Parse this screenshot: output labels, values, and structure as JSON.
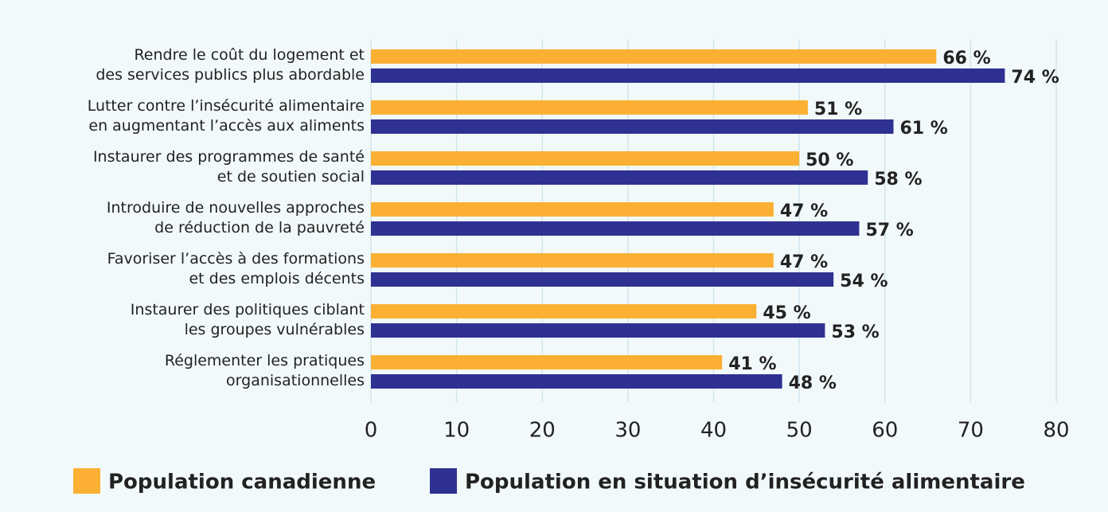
{
  "chart_data": {
    "type": "bar",
    "orientation": "horizontal",
    "categories": [
      "Rendre le coût du logement et\ndes services publics plus abordable",
      "Lutter contre l’insécurité alimentaire\nen augmentant l’accès aux aliments",
      "Instaurer des programmes de santé\net de soutien social",
      "Introduire de nouvelles approches\nde réduction de la pauvreté",
      "Favoriser l’accès à des formations\net des emplois décents",
      "Instaurer des politiques ciblant\nles groupes vulnérables",
      "Réglementer les pratiques\norganisationnelles"
    ],
    "series": [
      {
        "name": "Population canadienne",
        "color": "#fbb034",
        "values": [
          66,
          51,
          50,
          47,
          47,
          45,
          41
        ],
        "value_labels": [
          "66 %",
          "51 %",
          "50 %",
          "47 %",
          "47 %",
          "45 %",
          "41 %"
        ]
      },
      {
        "name": "Population en situation d’insécurité alimentaire",
        "color": "#2e3192",
        "values": [
          74,
          61,
          58,
          57,
          54,
          53,
          48
        ],
        "value_labels": [
          "74 %",
          "61 %",
          "58 %",
          "57 %",
          "54 %",
          "53 %",
          "48 %"
        ]
      }
    ],
    "xlim": [
      0,
      80
    ],
    "xticks": [
      0,
      10,
      20,
      30,
      40,
      50,
      60,
      70,
      80
    ],
    "grid": true,
    "legend": "bottom"
  }
}
